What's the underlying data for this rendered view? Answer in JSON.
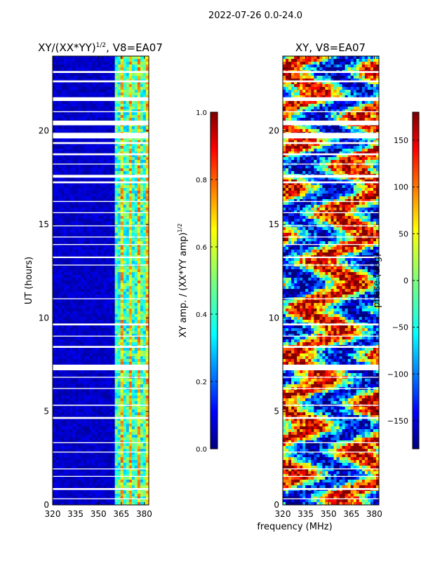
{
  "figure_title": "2022-07-26 0.0-24.0",
  "shared_xlabel": "frequency (MHz)",
  "colors": {
    "background": "#ffffff",
    "gap": "#ffffff",
    "axis": "#000000"
  },
  "chart_data": [
    {
      "type": "heatmap",
      "title_main": "XY/(XX*YY)",
      "title_sup": "1/2",
      "title_suffix": ", V8=EA07",
      "ylabel": "UT (hours)",
      "xlim": [
        320,
        383
      ],
      "ylim": [
        0,
        24
      ],
      "xticks": [
        320,
        335,
        350,
        365,
        380
      ],
      "yticks": [
        0,
        5,
        10,
        15,
        20
      ],
      "colorbar": {
        "label_main": "XY amp. / (XX*YY amp)",
        "label_sup": "1/2",
        "range": [
          0,
          1
        ],
        "ticks": [
          "0.0",
          "0.2",
          "0.4",
          "0.6",
          "0.8",
          "1.0"
        ]
      }
    },
    {
      "type": "heatmap",
      "title_main": "XY, V8=EA07",
      "ylabel": "",
      "xlim": [
        320,
        383
      ],
      "ylim": [
        0,
        24
      ],
      "xticks": [
        320,
        335,
        350,
        365,
        380
      ],
      "yticks": [
        0,
        5,
        10,
        15,
        20
      ],
      "colorbar": {
        "label_main": "phase (deg)",
        "range": [
          -180,
          180
        ],
        "ticks": [
          "−150",
          "−100",
          "−50",
          "0",
          "50",
          "100",
          "150"
        ]
      }
    }
  ],
  "data_gaps_hours": [
    [
      23.1,
      23.2
    ],
    [
      22.6,
      22.7
    ],
    [
      21.6,
      21.8
    ],
    [
      21.0,
      21.05
    ],
    [
      20.3,
      20.55
    ],
    [
      19.6,
      19.9
    ],
    [
      19.3,
      19.4
    ],
    [
      18.7,
      18.8
    ],
    [
      18.2,
      18.25
    ],
    [
      17.5,
      17.65
    ],
    [
      17.2,
      17.3
    ],
    [
      16.2,
      16.25
    ],
    [
      15.6,
      15.65
    ],
    [
      14.9,
      14.95
    ],
    [
      14.3,
      14.35
    ],
    [
      13.9,
      13.95
    ],
    [
      13.2,
      13.28
    ],
    [
      12.8,
      12.85
    ],
    [
      11.0,
      11.05
    ],
    [
      9.6,
      9.7
    ],
    [
      9.0,
      9.05
    ],
    [
      8.4,
      8.5
    ],
    [
      7.2,
      7.5
    ],
    [
      6.8,
      6.85
    ],
    [
      6.2,
      6.25
    ],
    [
      5.3,
      5.36
    ],
    [
      4.6,
      4.7
    ],
    [
      3.3,
      3.35
    ],
    [
      2.8,
      2.85
    ],
    [
      1.9,
      1.95
    ],
    [
      1.5,
      1.55
    ],
    [
      0.8,
      0.9
    ],
    [
      0.3,
      0.35
    ]
  ]
}
